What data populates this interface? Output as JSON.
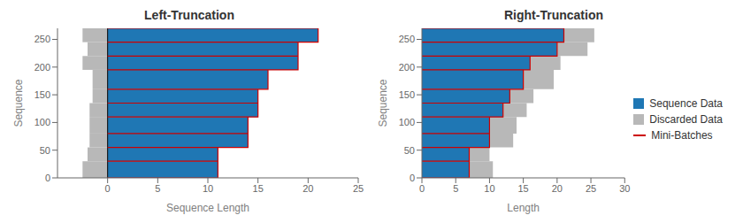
{
  "chart_data": [
    {
      "type": "bar",
      "orientation": "horizontal",
      "stacked": true,
      "title": "Left-Truncation",
      "xlabel": "Sequence Length",
      "ylabel": "Sequence",
      "xlim": [
        -5,
        25
      ],
      "ylim": [
        0,
        270
      ],
      "xticks": [
        0,
        5,
        10,
        15,
        20,
        25
      ],
      "yticks": [
        0,
        50,
        100,
        150,
        200,
        250
      ],
      "bins": [
        0,
        30,
        55,
        80,
        110,
        135,
        160,
        195,
        220,
        245,
        270
      ],
      "series": [
        {
          "name": "Sequence Data",
          "color": "#1f77b4",
          "values": [
            11,
            11,
            14,
            14,
            15,
            15,
            16,
            19,
            19,
            21
          ]
        },
        {
          "name": "Discarded Data",
          "color": "#b8b8b8",
          "values": [
            -2.5,
            -2.0,
            -1.8,
            -1.8,
            -1.8,
            -1.5,
            -1.5,
            -2.5,
            -2.0,
            -2.5
          ]
        },
        {
          "name": "Mini-Batches",
          "color": "#cc0000",
          "type": "line",
          "values": [
            11,
            11,
            14,
            14,
            15,
            15,
            16,
            19,
            19,
            21
          ]
        }
      ]
    },
    {
      "type": "bar",
      "orientation": "horizontal",
      "stacked": true,
      "title": "Right-Truncation",
      "xlabel": "Length",
      "ylabel": "Sequence",
      "xlim": [
        0,
        30
      ],
      "ylim": [
        0,
        270
      ],
      "xticks": [
        0,
        5,
        10,
        15,
        20,
        25,
        30
      ],
      "yticks": [
        0,
        50,
        100,
        150,
        200,
        250
      ],
      "bins": [
        0,
        30,
        55,
        80,
        110,
        135,
        160,
        195,
        220,
        245,
        270
      ],
      "legend": "right",
      "series": [
        {
          "name": "Sequence Data",
          "color": "#1f77b4",
          "values": [
            7,
            7,
            10,
            10,
            12,
            13,
            15,
            16,
            20,
            21
          ]
        },
        {
          "name": "Discarded Data",
          "color": "#b8b8b8",
          "values": [
            3.5,
            3.0,
            3.5,
            4.0,
            3.5,
            3.5,
            4.5,
            4.5,
            4.5,
            4.5
          ]
        },
        {
          "name": "Mini-Batches",
          "color": "#cc0000",
          "type": "line",
          "values": [
            7,
            7,
            10,
            10,
            12,
            13,
            15,
            16,
            20,
            21
          ]
        }
      ]
    }
  ]
}
